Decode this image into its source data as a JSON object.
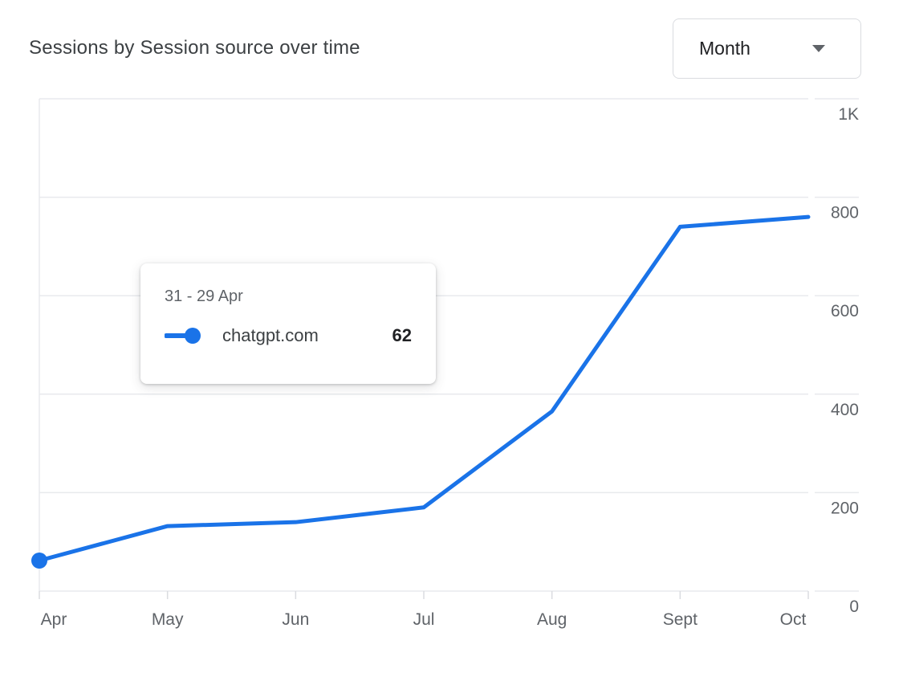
{
  "header": {
    "title": "Sessions by Session source over time",
    "granularity_selector": {
      "value": "Month",
      "icon": "caret-down-icon"
    }
  },
  "tooltip": {
    "date_range": "31 - 29 Apr",
    "series_name": "chatgpt.com",
    "value": "62",
    "series_color": "#1a73e8"
  },
  "chart_data": {
    "type": "line",
    "title": "Sessions by Session source over time",
    "categories": [
      "Apr",
      "May",
      "Jun",
      "Jul",
      "Aug",
      "Sept",
      "Oct"
    ],
    "series": [
      {
        "name": "chatgpt.com",
        "color": "#1a73e8",
        "values": [
          62,
          132,
          140,
          170,
          365,
          740,
          760
        ]
      }
    ],
    "ylim": [
      0,
      1000
    ],
    "yticks": [
      {
        "value": 0,
        "label": "0"
      },
      {
        "value": 200,
        "label": "200"
      },
      {
        "value": 400,
        "label": "400"
      },
      {
        "value": 600,
        "label": "600"
      },
      {
        "value": 800,
        "label": "800"
      },
      {
        "value": 1000,
        "label": "1K"
      }
    ],
    "highlighted_point": {
      "category": "Apr",
      "series": "chatgpt.com",
      "value": 62
    },
    "grid": "horizontal",
    "legend": "none",
    "colors": {
      "gridline": "#e8eaed",
      "axis_tick": "#dadce0",
      "axis_label": "#5f6368"
    }
  }
}
